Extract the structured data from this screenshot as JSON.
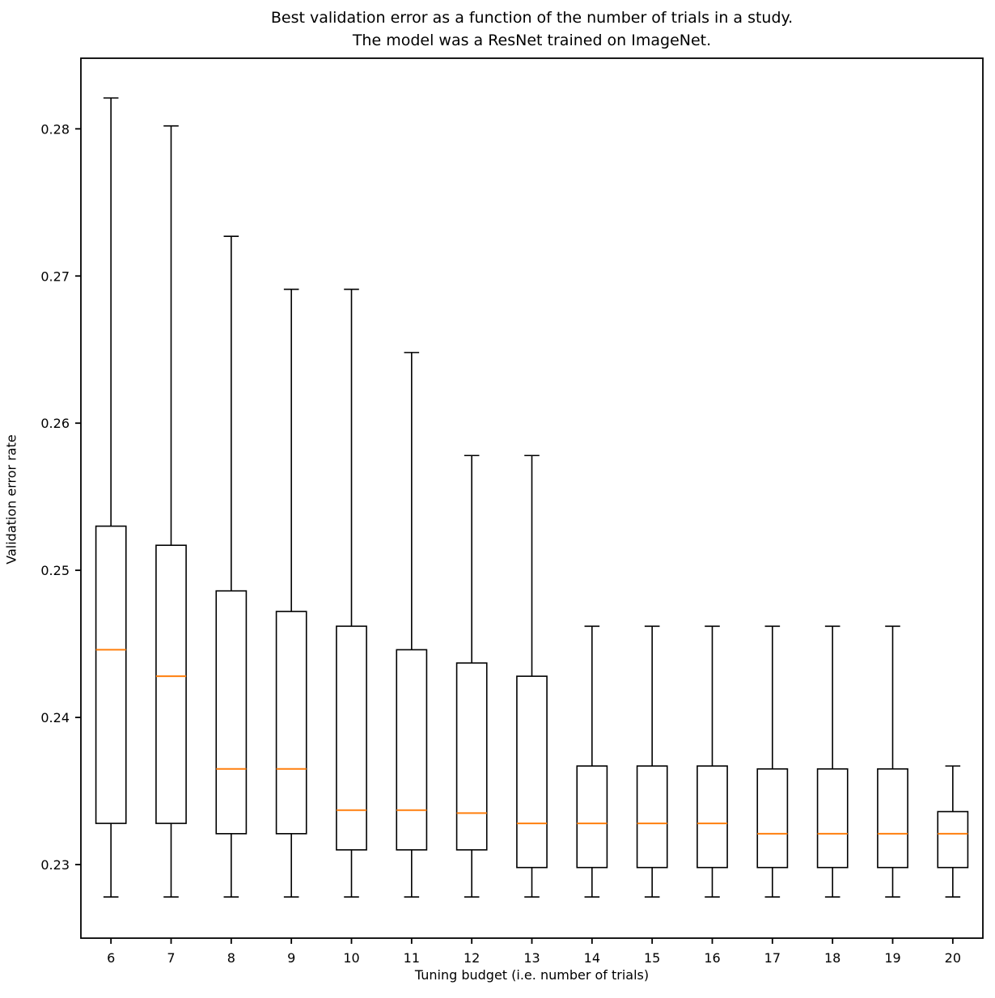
{
  "figure": {
    "title_line1": "Best validation error as a function of the number of trials in a study.",
    "title_line2": "The model was a ResNet trained on ImageNet.",
    "xlabel": "Tuning budget (i.e. number of trials)",
    "ylabel": "Validation error rate"
  },
  "chart_data": {
    "type": "boxplot",
    "title": "Best validation error as a function of the number of trials in a study.\nThe model was a ResNet trained on ImageNet.",
    "xlabel": "Tuning budget (i.e. number of trials)",
    "ylabel": "Validation error rate",
    "categories": [
      6,
      7,
      8,
      9,
      10,
      11,
      12,
      13,
      14,
      15,
      16,
      17,
      18,
      19,
      20
    ],
    "boxes": [
      {
        "x": 6,
        "whislo": 0.2278,
        "q1": 0.2328,
        "median": 0.2446,
        "q3": 0.253,
        "whishi": 0.2821
      },
      {
        "x": 7,
        "whislo": 0.2278,
        "q1": 0.2328,
        "median": 0.2428,
        "q3": 0.2517,
        "whishi": 0.2802
      },
      {
        "x": 8,
        "whislo": 0.2278,
        "q1": 0.2321,
        "median": 0.2365,
        "q3": 0.2486,
        "whishi": 0.2727
      },
      {
        "x": 9,
        "whislo": 0.2278,
        "q1": 0.2321,
        "median": 0.2365,
        "q3": 0.2472,
        "whishi": 0.2691
      },
      {
        "x": 10,
        "whislo": 0.2278,
        "q1": 0.231,
        "median": 0.2337,
        "q3": 0.2462,
        "whishi": 0.2691
      },
      {
        "x": 11,
        "whislo": 0.2278,
        "q1": 0.231,
        "median": 0.2337,
        "q3": 0.2446,
        "whishi": 0.2648
      },
      {
        "x": 12,
        "whislo": 0.2278,
        "q1": 0.231,
        "median": 0.2335,
        "q3": 0.2437,
        "whishi": 0.2578
      },
      {
        "x": 13,
        "whislo": 0.2278,
        "q1": 0.2298,
        "median": 0.2328,
        "q3": 0.2428,
        "whishi": 0.2578
      },
      {
        "x": 14,
        "whislo": 0.2278,
        "q1": 0.2298,
        "median": 0.2328,
        "q3": 0.2367,
        "whishi": 0.2462
      },
      {
        "x": 15,
        "whislo": 0.2278,
        "q1": 0.2298,
        "median": 0.2328,
        "q3": 0.2367,
        "whishi": 0.2462
      },
      {
        "x": 16,
        "whislo": 0.2278,
        "q1": 0.2298,
        "median": 0.2328,
        "q3": 0.2367,
        "whishi": 0.2462
      },
      {
        "x": 17,
        "whislo": 0.2278,
        "q1": 0.2298,
        "median": 0.2321,
        "q3": 0.2365,
        "whishi": 0.2462
      },
      {
        "x": 18,
        "whislo": 0.2278,
        "q1": 0.2298,
        "median": 0.2321,
        "q3": 0.2365,
        "whishi": 0.2462
      },
      {
        "x": 19,
        "whislo": 0.2278,
        "q1": 0.2298,
        "median": 0.2321,
        "q3": 0.2365,
        "whishi": 0.2462
      },
      {
        "x": 20,
        "whislo": 0.2278,
        "q1": 0.2298,
        "median": 0.2321,
        "q3": 0.2336,
        "whishi": 0.2367
      }
    ],
    "yticks": [
      0.23,
      0.24,
      0.25,
      0.26,
      0.27,
      0.28
    ],
    "ytick_labels": [
      "0.23",
      "0.24",
      "0.25",
      "0.26",
      "0.27",
      "0.28"
    ],
    "ylim": [
      0.225,
      0.2848
    ],
    "grid": false,
    "legend_position": "none",
    "colors": {
      "box_stroke": "#000000",
      "median": "#ff7f0e",
      "spine": "#000000",
      "background": "#ffffff"
    }
  }
}
